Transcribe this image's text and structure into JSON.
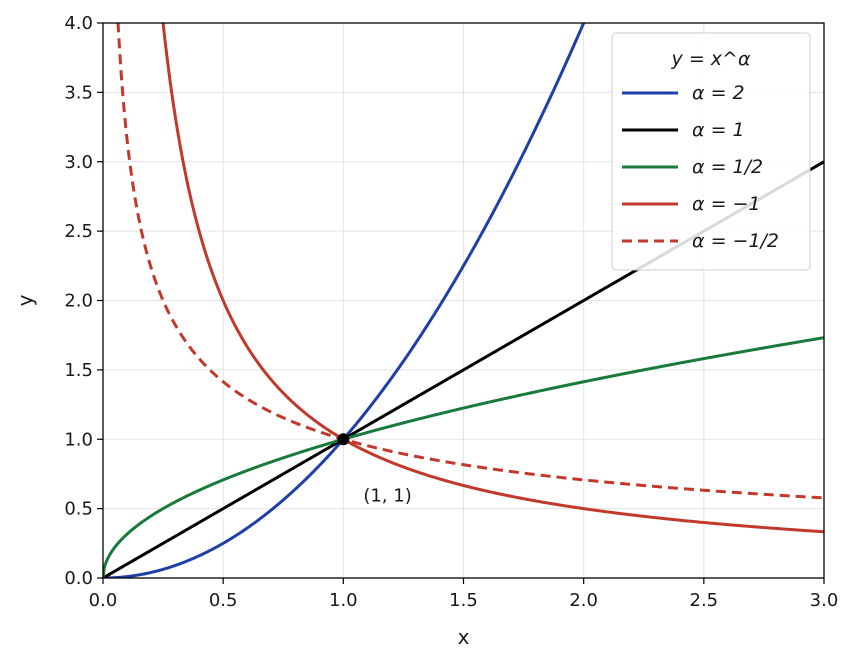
{
  "chart_data": {
    "type": "line",
    "xlabel": "x",
    "ylabel": "y",
    "xlim": [
      0.0,
      3.0
    ],
    "ylim": [
      0.0,
      4.0
    ],
    "x_ticks": [
      "0.0",
      "0.5",
      "1.0",
      "1.5",
      "2.0",
      "2.5",
      "3.0"
    ],
    "y_ticks": [
      "0.0",
      "0.5",
      "1.0",
      "1.5",
      "2.0",
      "2.5",
      "3.0",
      "3.5",
      "4.0"
    ],
    "grid": true,
    "legend_title": "y = x^α",
    "legend_placement": "top-right",
    "series": [
      {
        "name": "α = 2",
        "alpha": 2,
        "color": "#1f3fa8",
        "style": "solid"
      },
      {
        "name": "α = 1",
        "alpha": 1,
        "color": "#000000",
        "style": "solid"
      },
      {
        "name": "α = 1/2",
        "alpha": 0.5,
        "color": "#1a7a3c",
        "style": "solid"
      },
      {
        "name": "α = −1",
        "alpha": -1,
        "color": "#c0392b",
        "style": "solid"
      },
      {
        "name": "α = −1/2",
        "alpha": -0.5,
        "color": "#c0392b",
        "style": "dashed"
      }
    ],
    "annotations": [
      {
        "text": "(1, 1)",
        "x": 1.0,
        "y": 1.0
      }
    ]
  }
}
